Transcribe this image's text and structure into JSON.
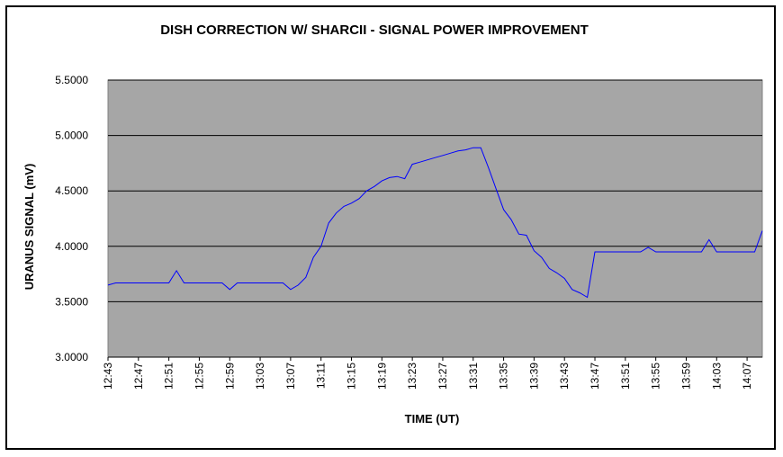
{
  "chart_data": {
    "type": "line",
    "title": "DISH CORRECTION W/ SHARCII - SIGNAL POWER IMPROVEMENT",
    "xlabel": "TIME (UT)",
    "ylabel": "URANUS SIGNAL (mV)",
    "ylim": [
      3.0,
      5.5
    ],
    "y_ticks": [
      "3.0000",
      "3.5000",
      "4.0000",
      "4.5000",
      "5.0000",
      "5.5000"
    ],
    "x_tick_labels": [
      "12:43",
      "12:47",
      "12:51",
      "12:55",
      "12:59",
      "13:03",
      "13:07",
      "13:11",
      "13:15",
      "13:19",
      "13:23",
      "13:27",
      "13:31",
      "13:35",
      "13:39",
      "13:43",
      "13:47",
      "13:51",
      "13:55",
      "13:59",
      "14:03",
      "14:07"
    ],
    "x_range_minutes": [
      "12:43",
      "14:09"
    ],
    "grid": "horizontal",
    "plot_background": "#a6a6a6",
    "series": [
      {
        "color": "#0000ff",
        "points": [
          [
            "12:43",
            3.65
          ],
          [
            "12:44",
            3.67
          ],
          [
            "12:45",
            3.67
          ],
          [
            "12:46",
            3.67
          ],
          [
            "12:47",
            3.67
          ],
          [
            "12:48",
            3.67
          ],
          [
            "12:49",
            3.67
          ],
          [
            "12:50",
            3.67
          ],
          [
            "12:51",
            3.67
          ],
          [
            "12:52",
            3.78
          ],
          [
            "12:53",
            3.67
          ],
          [
            "12:54",
            3.67
          ],
          [
            "12:55",
            3.67
          ],
          [
            "12:56",
            3.67
          ],
          [
            "12:57",
            3.67
          ],
          [
            "12:58",
            3.67
          ],
          [
            "12:59",
            3.61
          ],
          [
            "13:00",
            3.67
          ],
          [
            "13:01",
            3.67
          ],
          [
            "13:02",
            3.67
          ],
          [
            "13:03",
            3.67
          ],
          [
            "13:04",
            3.67
          ],
          [
            "13:05",
            3.67
          ],
          [
            "13:06",
            3.67
          ],
          [
            "13:07",
            3.61
          ],
          [
            "13:08",
            3.65
          ],
          [
            "13:09",
            3.72
          ],
          [
            "13:10",
            3.9
          ],
          [
            "13:11",
            4.0
          ],
          [
            "13:12",
            4.21
          ],
          [
            "13:13",
            4.3
          ],
          [
            "13:14",
            4.36
          ],
          [
            "13:15",
            4.39
          ],
          [
            "13:16",
            4.43
          ],
          [
            "13:17",
            4.5
          ],
          [
            "13:18",
            4.54
          ],
          [
            "13:19",
            4.59
          ],
          [
            "13:20",
            4.62
          ],
          [
            "13:21",
            4.63
          ],
          [
            "13:22",
            4.61
          ],
          [
            "13:23",
            4.74
          ],
          [
            "13:24",
            4.76
          ],
          [
            "13:25",
            4.78
          ],
          [
            "13:26",
            4.8
          ],
          [
            "13:27",
            4.82
          ],
          [
            "13:28",
            4.84
          ],
          [
            "13:29",
            4.86
          ],
          [
            "13:30",
            4.87
          ],
          [
            "13:31",
            4.89
          ],
          [
            "13:32",
            4.89
          ],
          [
            "13:33",
            4.71
          ],
          [
            "13:34",
            4.52
          ],
          [
            "13:35",
            4.33
          ],
          [
            "13:36",
            4.24
          ],
          [
            "13:37",
            4.11
          ],
          [
            "13:38",
            4.1
          ],
          [
            "13:39",
            3.96
          ],
          [
            "13:40",
            3.9
          ],
          [
            "13:41",
            3.8
          ],
          [
            "13:42",
            3.76
          ],
          [
            "13:43",
            3.71
          ],
          [
            "13:44",
            3.61
          ],
          [
            "13:45",
            3.58
          ],
          [
            "13:46",
            3.54
          ],
          [
            "13:47",
            3.95
          ],
          [
            "13:48",
            3.95
          ],
          [
            "13:49",
            3.95
          ],
          [
            "13:50",
            3.95
          ],
          [
            "13:51",
            3.95
          ],
          [
            "13:52",
            3.95
          ],
          [
            "13:53",
            3.95
          ],
          [
            "13:54",
            3.99
          ],
          [
            "13:55",
            3.95
          ],
          [
            "13:56",
            3.95
          ],
          [
            "13:57",
            3.95
          ],
          [
            "13:58",
            3.95
          ],
          [
            "13:59",
            3.95
          ],
          [
            "14:00",
            3.95
          ],
          [
            "14:01",
            3.95
          ],
          [
            "14:02",
            4.06
          ],
          [
            "14:03",
            3.95
          ],
          [
            "14:04",
            3.95
          ],
          [
            "14:05",
            3.95
          ],
          [
            "14:06",
            3.95
          ],
          [
            "14:07",
            3.95
          ],
          [
            "14:08",
            3.95
          ],
          [
            "14:09",
            4.14
          ]
        ]
      }
    ]
  }
}
